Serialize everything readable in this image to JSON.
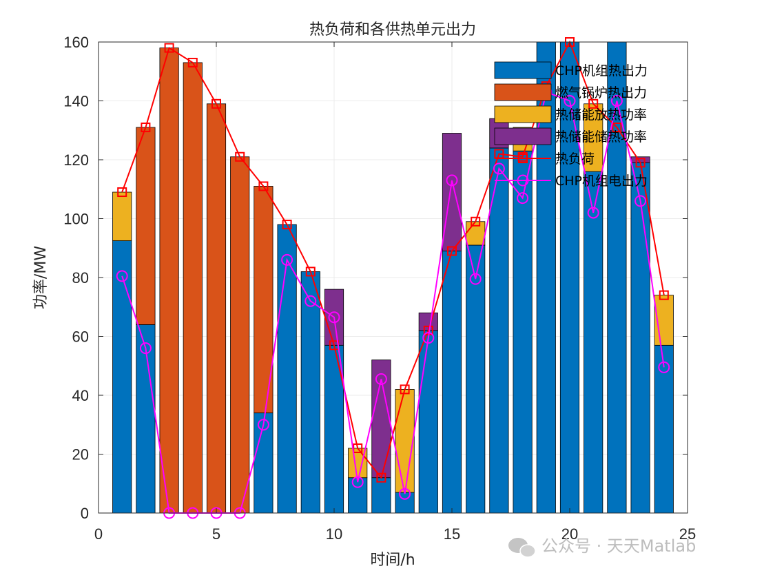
{
  "chart_data": {
    "type": "bar",
    "stacked": true,
    "title": "热负荷和各供热单元出力",
    "xlabel": "时间/h",
    "ylabel": "功率/MW",
    "xlim": [
      0,
      25
    ],
    "ylim": [
      0,
      160
    ],
    "xticks": [
      0,
      5,
      10,
      15,
      20,
      25
    ],
    "yticks": [
      0,
      20,
      40,
      60,
      80,
      100,
      120,
      140,
      160
    ],
    "grid": true,
    "legend_position": "top-right",
    "x": [
      1,
      2,
      3,
      4,
      5,
      6,
      7,
      8,
      9,
      10,
      11,
      12,
      13,
      14,
      15,
      16,
      17,
      18,
      19,
      20,
      21,
      22,
      23,
      24
    ],
    "bar_series": [
      {
        "name": "CHP机组热出力",
        "color": "#0072BD",
        "values": [
          92.5,
          64,
          0,
          0,
          0,
          0,
          34,
          98,
          82,
          57,
          12,
          12,
          7,
          62,
          89,
          91,
          124,
          123,
          160,
          160,
          116,
          160,
          119,
          57
        ]
      },
      {
        "name": "燃气锅炉热出力",
        "color": "#D95319",
        "values": [
          0,
          67,
          158,
          153,
          139,
          121,
          77,
          0,
          0,
          0,
          0,
          0,
          0,
          0,
          0,
          0,
          0,
          0,
          0,
          0,
          0,
          0,
          0,
          0
        ]
      },
      {
        "name": "热储能放热功率",
        "color": "#EDB120",
        "values": [
          16.5,
          0,
          0,
          0,
          0,
          0,
          0,
          0,
          0,
          0,
          10,
          0,
          35,
          0,
          0,
          8,
          0,
          8,
          0,
          0,
          23,
          0,
          0,
          17
        ]
      },
      {
        "name": "热储能储热功率",
        "color": "#7E2F8E",
        "values": [
          0,
          0,
          0,
          0,
          0,
          0,
          0,
          0,
          0,
          19,
          0,
          40,
          0,
          6,
          40,
          0,
          10,
          0,
          15,
          0,
          0,
          29,
          2,
          0
        ]
      }
    ],
    "line_series": [
      {
        "name": "热负荷",
        "color": "#FF0000",
        "marker": "square",
        "values": [
          109,
          131,
          158,
          153,
          139,
          121,
          111,
          98,
          82,
          57,
          22,
          12,
          42,
          62,
          89,
          99,
          122,
          121,
          145,
          160,
          139,
          131,
          119,
          74
        ]
      },
      {
        "name": "CHP机组电出力",
        "color": "#FF00FF",
        "marker": "circle",
        "values": [
          80.5,
          56,
          0,
          0,
          0,
          0,
          30,
          86,
          72,
          66.5,
          10.5,
          45.5,
          6.5,
          59.5,
          113,
          79.5,
          117,
          107,
          143,
          140,
          102,
          140,
          106,
          49.5
        ]
      }
    ]
  },
  "watermark": {
    "text": "公众号 · 天天Matlab"
  }
}
